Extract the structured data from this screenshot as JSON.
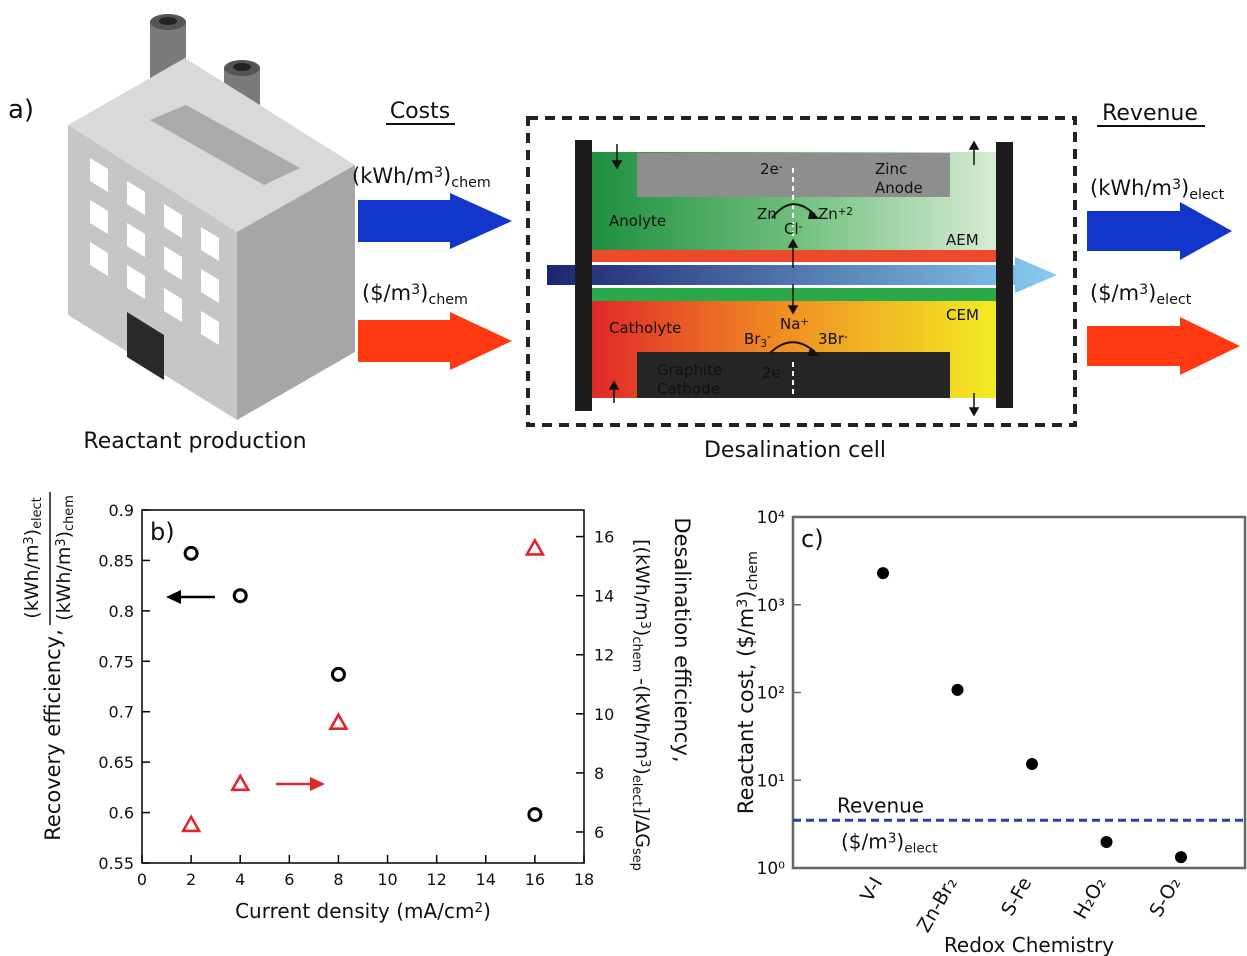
{
  "diagram": {
    "panel_label": "a)",
    "costs_heading": "Costs",
    "revenue_heading": "Revenue",
    "cost_energy": [
      "(kWh/m",
      "3",
      ")",
      "chem"
    ],
    "cost_money": [
      "($/m",
      "3",
      ")",
      "chem"
    ],
    "revenue_energy": [
      "(kWh/m",
      "3",
      ")",
      "elect"
    ],
    "revenue_money": [
      "($/m",
      "3",
      ")",
      "elect"
    ],
    "factory_label": "Reactant production",
    "cell_label": "Desalination cell",
    "cell": {
      "anode_electrons": [
        "2e",
        "-"
      ],
      "anode": [
        "Zinc",
        "Anode"
      ],
      "anolyte": "Anolyte",
      "zn": "Zn",
      "zn_ion": [
        "Zn",
        "+2"
      ],
      "chloride": [
        "Cl",
        "-"
      ],
      "aem": "AEM",
      "sodium": [
        "Na",
        "+"
      ],
      "catholyte": "Catholyte",
      "tribromide": [
        "Br",
        "3",
        "-"
      ],
      "bromide": [
        "3Br",
        "-"
      ],
      "cem": "CEM",
      "cathode": [
        "Graphite",
        "Cathode"
      ],
      "cathode_electrons": [
        "2e",
        "-"
      ]
    }
  },
  "chart_data": [
    {
      "type": "scatter",
      "panel_label": "b)",
      "x_label": [
        "Current density (mA/cm",
        "2",
        ")"
      ],
      "y_label": "Recovery efficiency,",
      "y_label_numerator": [
        "(kWh/m",
        "3",
        ")",
        "elect"
      ],
      "y_label_denominator": [
        "(kWh/m",
        "3",
        ")",
        "chem"
      ],
      "y2_label": "Desalination efficiency,",
      "y2_label_expression": [
        "[(kWh/m",
        "3",
        ")",
        "chem",
        " -(kWh/m",
        "3",
        ")",
        "elect",
        "]/ΔG",
        "sep"
      ],
      "x": [
        2,
        4,
        8,
        16
      ],
      "xlim": [
        0,
        18
      ],
      "xticks": [
        0,
        2,
        4,
        6,
        8,
        10,
        12,
        14,
        16,
        18
      ],
      "ylim": [
        0.55,
        0.9
      ],
      "yticks": [
        0.55,
        0.6,
        0.65,
        0.7,
        0.75,
        0.8,
        0.85,
        0.9
      ],
      "y2lim": [
        4.95,
        16.9
      ],
      "y2ticks": [
        6,
        8,
        10,
        12,
        14,
        16
      ],
      "y2color": "#e3242b",
      "series": [
        {
          "color": "#000000",
          "marker": "circle",
          "values": [
            0.857,
            0.815,
            0.737,
            0.598
          ]
        },
        {
          "color": "#e3242b",
          "marker": "triangle",
          "axis": "y2",
          "values": [
            6.24,
            7.63,
            9.7,
            15.6
          ]
        }
      ]
    },
    {
      "type": "scatter",
      "panel_label": "c)",
      "yscale": "log",
      "x_label": "Redox Chemistry",
      "y_label": [
        "Reactant  cost, ($/m",
        "3",
        ")",
        "chem"
      ],
      "categories": [
        "V-I",
        "Zn-Br₂",
        "S-Fe",
        "H₂O₂",
        "S-O₂"
      ],
      "values": [
        2290,
        107,
        15.3,
        1.98,
        1.33
      ],
      "color": "#000000",
      "ylim": [
        1,
        10000
      ],
      "yticks": [
        {
          "value": 1,
          "label": "10⁰"
        },
        {
          "value": 10,
          "label": "10¹"
        },
        {
          "value": 100,
          "label": "10²"
        },
        {
          "value": 1000,
          "label": "10³"
        },
        {
          "value": 10000,
          "label": "10⁴"
        }
      ],
      "hline": {
        "value": 3.5,
        "color": "#2b41a8",
        "label": "Revenue",
        "sublabel": [
          "($/m",
          "3",
          ")",
          "elect"
        ]
      }
    }
  ]
}
